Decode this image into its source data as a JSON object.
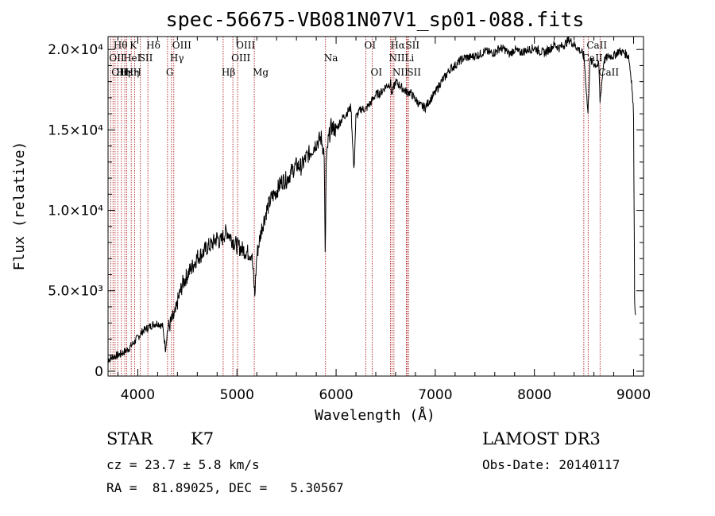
{
  "chart_data": {
    "type": "line",
    "title": "spec-56675-VB081N07V1_sp01-088.fits",
    "xlabel": "Wavelength (Å)",
    "ylabel": "Flux (relative)",
    "xlim": [
      3700,
      9100
    ],
    "ylim": [
      -300,
      20800
    ],
    "xticks": [
      {
        "v": 4000,
        "label": "4000"
      },
      {
        "v": 5000,
        "label": "5000"
      },
      {
        "v": 6000,
        "label": "6000"
      },
      {
        "v": 7000,
        "label": "7000"
      },
      {
        "v": 8000,
        "label": "8000"
      },
      {
        "v": 9000,
        "label": "9000"
      }
    ],
    "yticks": [
      {
        "v": 0,
        "label": "0"
      },
      {
        "v": 5000,
        "label": "5.0×10³"
      },
      {
        "v": 10000,
        "label": "1.0×10⁴"
      },
      {
        "v": 15000,
        "label": "1.5×10⁴"
      },
      {
        "v": 20000,
        "label": "2.0×10⁴"
      }
    ],
    "lines": [
      {
        "w": 3727,
        "label": "OII",
        "row": 1
      },
      {
        "w": 3750,
        "label": "OII",
        "row": 2
      },
      {
        "w": 3771,
        "label": "Hθ",
        "row": 0
      },
      {
        "w": 3798,
        "label": "Hη",
        "row": 2
      },
      {
        "w": 3835,
        "label": "Hε",
        "row": 2
      },
      {
        "w": 3869,
        "label": "HeI",
        "row": 1
      },
      {
        "w": 3889,
        "label": "Hη",
        "row": 2
      },
      {
        "w": 3934,
        "label": "K",
        "row": 0
      },
      {
        "w": 3969,
        "label": "H",
        "row": 2
      },
      {
        "w": 4026,
        "label": "SII",
        "row": 1
      },
      {
        "w": 4102,
        "label": "Hδ",
        "row": 0
      },
      {
        "w": 4300,
        "label": "G",
        "row": 2
      },
      {
        "w": 4340,
        "label": "Hγ",
        "row": 1
      },
      {
        "w": 4363,
        "label": "OIII",
        "row": 0
      },
      {
        "w": 4861,
        "label": "Hβ",
        "row": 2
      },
      {
        "w": 4959,
        "label": "OIII",
        "row": 1
      },
      {
        "w": 5007,
        "label": "OIII",
        "row": 0
      },
      {
        "w": 5175,
        "label": "Mg",
        "row": 2
      },
      {
        "w": 5893,
        "label": "Na",
        "row": 1
      },
      {
        "w": 6300,
        "label": "OI",
        "row": 0
      },
      {
        "w": 6364,
        "label": "OI",
        "row": 2
      },
      {
        "w": 6548,
        "label": "NII",
        "row": 1
      },
      {
        "w": 6563,
        "label": "Hα",
        "row": 0
      },
      {
        "w": 6583,
        "label": "NII",
        "row": 2
      },
      {
        "w": 6708,
        "label": "Li",
        "row": 1
      },
      {
        "w": 6716,
        "label": "SII",
        "row": 0
      },
      {
        "w": 6731,
        "label": "SII",
        "row": 2
      },
      {
        "w": 8498,
        "label": "CaII",
        "row": 1
      },
      {
        "w": 8542,
        "label": "CaII",
        "row": 0
      },
      {
        "w": 8662,
        "label": "CaII",
        "row": 2
      }
    ],
    "series": [
      {
        "points": [
          [
            3700,
            700
          ],
          [
            3750,
            900
          ],
          [
            3800,
            1000
          ],
          [
            3850,
            1150
          ],
          [
            3900,
            1350
          ],
          [
            3950,
            1700
          ],
          [
            4000,
            2100
          ],
          [
            4050,
            2500
          ],
          [
            4100,
            2700
          ],
          [
            4150,
            2900
          ],
          [
            4200,
            3000
          ],
          [
            4250,
            2800
          ],
          [
            4280,
            1400
          ],
          [
            4300,
            2600
          ],
          [
            4340,
            3100
          ],
          [
            4380,
            3600
          ],
          [
            4400,
            4300
          ],
          [
            4450,
            5400
          ],
          [
            4500,
            6000
          ],
          [
            4550,
            6500
          ],
          [
            4600,
            7100
          ],
          [
            4650,
            7300
          ],
          [
            4700,
            7700
          ],
          [
            4750,
            7900
          ],
          [
            4800,
            8300
          ],
          [
            4830,
            8000
          ],
          [
            4870,
            8500
          ],
          [
            4900,
            8700
          ],
          [
            4950,
            8200
          ],
          [
            5000,
            7800
          ],
          [
            5050,
            7600
          ],
          [
            5100,
            7400
          ],
          [
            5150,
            7300
          ],
          [
            5180,
            4700
          ],
          [
            5200,
            7200
          ],
          [
            5250,
            8900
          ],
          [
            5300,
            10000
          ],
          [
            5350,
            10800
          ],
          [
            5400,
            11200
          ],
          [
            5450,
            11800
          ],
          [
            5500,
            11900
          ],
          [
            5550,
            12400
          ],
          [
            5600,
            12800
          ],
          [
            5650,
            12700
          ],
          [
            5700,
            13300
          ],
          [
            5750,
            13700
          ],
          [
            5800,
            14200
          ],
          [
            5850,
            14500
          ],
          [
            5880,
            13500
          ],
          [
            5890,
            7000
          ],
          [
            5900,
            12800
          ],
          [
            5920,
            14300
          ],
          [
            5950,
            15200
          ],
          [
            6000,
            15000
          ],
          [
            6050,
            15600
          ],
          [
            6100,
            16000
          ],
          [
            6150,
            16400
          ],
          [
            6180,
            12400
          ],
          [
            6200,
            15800
          ],
          [
            6250,
            16300
          ],
          [
            6300,
            16300
          ],
          [
            6350,
            16700
          ],
          [
            6400,
            17200
          ],
          [
            6450,
            17300
          ],
          [
            6500,
            17700
          ],
          [
            6550,
            17900
          ],
          [
            6560,
            17200
          ],
          [
            6600,
            18000
          ],
          [
            6650,
            17700
          ],
          [
            6700,
            17400
          ],
          [
            6750,
            17300
          ],
          [
            6800,
            16900
          ],
          [
            6850,
            16500
          ],
          [
            6900,
            16400
          ],
          [
            6950,
            16900
          ],
          [
            7000,
            17300
          ],
          [
            7050,
            17900
          ],
          [
            7100,
            18300
          ],
          [
            7150,
            18800
          ],
          [
            7200,
            19000
          ],
          [
            7250,
            19300
          ],
          [
            7300,
            19500
          ],
          [
            7350,
            19500
          ],
          [
            7400,
            19600
          ],
          [
            7450,
            19700
          ],
          [
            7500,
            19900
          ],
          [
            7550,
            19800
          ],
          [
            7600,
            19800
          ],
          [
            7650,
            20100
          ],
          [
            7700,
            20000
          ],
          [
            7750,
            19700
          ],
          [
            7800,
            20000
          ],
          [
            7850,
            19800
          ],
          [
            7900,
            19900
          ],
          [
            7950,
            20000
          ],
          [
            8000,
            20100
          ],
          [
            8050,
            19900
          ],
          [
            8100,
            19800
          ],
          [
            8150,
            20000
          ],
          [
            8200,
            20300
          ],
          [
            8250,
            20100
          ],
          [
            8300,
            20300
          ],
          [
            8350,
            20600
          ],
          [
            8400,
            20300
          ],
          [
            8450,
            20000
          ],
          [
            8500,
            19600
          ],
          [
            8540,
            16000
          ],
          [
            8560,
            19300
          ],
          [
            8600,
            19100
          ],
          [
            8650,
            19000
          ],
          [
            8662,
            16800
          ],
          [
            8700,
            19300
          ],
          [
            8750,
            19600
          ],
          [
            8800,
            19600
          ],
          [
            8850,
            19900
          ],
          [
            8900,
            19800
          ],
          [
            8950,
            19600
          ],
          [
            8980,
            18000
          ],
          [
            9000,
            16000
          ],
          [
            9010,
            4500
          ],
          [
            9020,
            3500
          ]
        ]
      }
    ]
  },
  "info": {
    "object_class": "STAR",
    "subclass": "K7",
    "survey": "LAMOST DR3",
    "cz": "cz = 23.7 ± 5.8 km/s",
    "obs_date": "Obs-Date: 20140117",
    "coords": "RA =  81.89025, DEC =   5.30567"
  },
  "colors": {
    "spectrum": "#000000",
    "line_markers": "#b02020",
    "axes": "#000000"
  }
}
